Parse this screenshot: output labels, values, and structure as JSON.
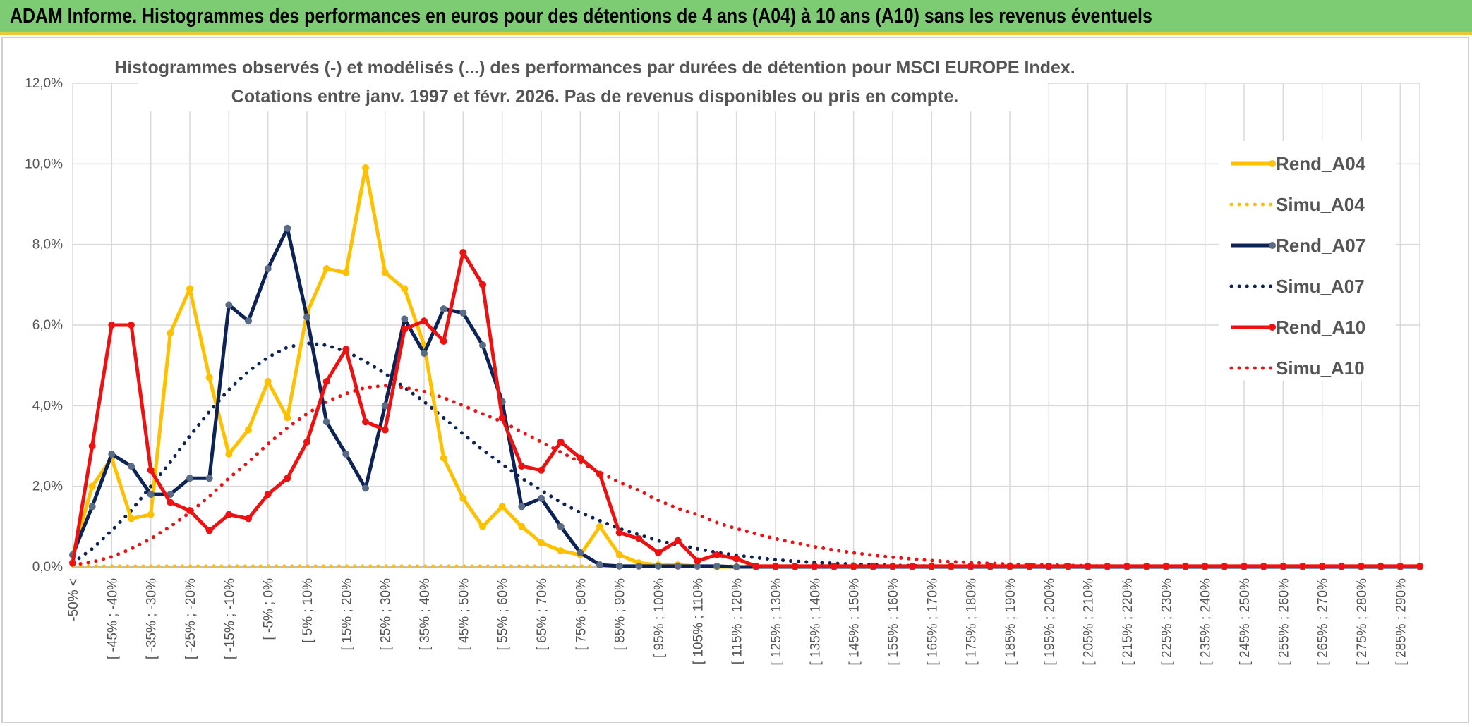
{
  "header": {
    "banner_title": "ADAM Informe. Histogrammes des performances en euros pour des détentions de 4 ans (A04) à 10 ans (A10) sans les revenus éventuels",
    "banner_color": "#7dcb72"
  },
  "chart_data": {
    "type": "line",
    "title_line1": "Histogrammes observés (-) et modélisés (...) des performances par durées de détention pour MSCI EUROPE Index.",
    "title_line2": "Cotations entre janv. 1997 et févr. 2026. Pas de revenus disponibles ou pris en compte.",
    "ylim": [
      0,
      12
    ],
    "yticks": [
      0,
      2,
      4,
      6,
      8,
      10,
      12
    ],
    "ytick_labels": [
      "0,0%",
      "2,0%",
      "4,0%",
      "6,0%",
      "8,0%",
      "10,0%",
      "12,0%"
    ],
    "grid": true,
    "legend_position": "right",
    "x_labels": [
      "-50% <",
      "[ -45% ; -40%",
      "[ -35% ; -30%",
      "[ -25% ; -20%",
      "[ -15% ; -10%",
      "[ -5% ; 0%",
      "[ 5% ; 10%",
      "[ 15% ; 20%",
      "[ 25% ; 30%",
      "[ 35% ; 40%",
      "[ 45% ; 50%",
      "[ 55% ; 60%",
      "[ 65% ; 70%",
      "[ 75% ; 80%",
      "[ 85% ; 90%",
      "[ 95% ; 100%",
      "[ 105% ; 110%",
      "[ 115% ; 120%",
      "[ 125% ; 130%",
      "[ 135% ; 140%",
      "[ 145% ; 150%",
      "[ 155% ; 160%",
      "[ 165% ; 170%",
      "[ 175% ; 180%",
      "[ 185% ; 190%",
      "[ 195% ; 200%",
      "[ 205% ; 210%",
      "[ 215% ; 220%",
      "[ 225% ; 230%",
      "[ 235% ; 240%",
      "[ 245% ; 250%",
      "[ 255% ; 260%",
      "[ 265% ; 270%",
      "[ 275% ; 280%",
      "[ 285% ; 290%"
    ],
    "n_points": 70,
    "series": [
      {
        "name": "Rend_A04",
        "style": "solid",
        "color": "#ffc000",
        "values": [
          0.3,
          2.0,
          2.7,
          1.2,
          1.3,
          5.8,
          6.9,
          4.7,
          2.8,
          3.4,
          4.6,
          3.7,
          6.3,
          7.4,
          7.3,
          9.9,
          7.3,
          6.9,
          5.5,
          2.7,
          1.7,
          1.0,
          1.5,
          1.0,
          0.6,
          0.4,
          0.3,
          1.0,
          0.3,
          0.1,
          0.05,
          0.05,
          0.02,
          0,
          0,
          0,
          0,
          0,
          0,
          0,
          0,
          0,
          0,
          0,
          0,
          0,
          0,
          0,
          0,
          0,
          0,
          0,
          0,
          0,
          0,
          0,
          0,
          0,
          0,
          0,
          0,
          0,
          0,
          0,
          0,
          0,
          0,
          0,
          0,
          0
        ]
      },
      {
        "name": "Simu_A04",
        "style": "dotted",
        "color": "#ffc000",
        "values": [
          0.02,
          0.02,
          0.02,
          0.02,
          0.02,
          0.02,
          0.02,
          0.02,
          0.02,
          0.02,
          0.02,
          0.02,
          0.02,
          0.02,
          0.02,
          0.02,
          0.02,
          0.02,
          0.02,
          0.02,
          0.02,
          0.02,
          0.02,
          0.02,
          0.02,
          0.02,
          0.02,
          0.02,
          0.02,
          0.02,
          0.02,
          0.02,
          0.02,
          0.02,
          0.02,
          0.02,
          0.02,
          0.02,
          0.02,
          0.02,
          0.02,
          0.02,
          0.02,
          0.02,
          0.02,
          0.02,
          0.02,
          0.02,
          0.02,
          0.02,
          0.02,
          0.02,
          0.02,
          0.02,
          0.02,
          0.02,
          0.02,
          0.02,
          0.02,
          0.02,
          0.02,
          0.02,
          0.02,
          0.02,
          0.02,
          0.02,
          0.02,
          0.02,
          0.02,
          0.02
        ]
      },
      {
        "name": "Rend_A07",
        "style": "solid",
        "color": "#0d2356",
        "values": [
          0.3,
          1.5,
          2.8,
          2.5,
          1.8,
          1.8,
          2.2,
          2.2,
          6.5,
          6.1,
          7.4,
          8.4,
          6.2,
          3.6,
          2.8,
          1.95,
          4.0,
          6.15,
          5.3,
          6.4,
          6.3,
          5.5,
          4.1,
          1.5,
          1.7,
          1.0,
          0.35,
          0.05,
          0.02,
          0.02,
          0.02,
          0.02,
          0.02,
          0.02,
          0,
          0,
          0,
          0,
          0,
          0,
          0,
          0,
          0,
          0,
          0,
          0,
          0,
          0,
          0,
          0,
          0,
          0,
          0,
          0,
          0,
          0,
          0,
          0,
          0,
          0,
          0,
          0,
          0,
          0,
          0,
          0,
          0,
          0,
          0,
          0
        ]
      },
      {
        "name": "Simu_A07",
        "style": "dotted",
        "color": "#0d2356",
        "values": [
          0.1,
          0.45,
          0.9,
          1.4,
          2.0,
          2.6,
          3.25,
          3.85,
          4.4,
          4.85,
          5.2,
          5.45,
          5.55,
          5.5,
          5.35,
          5.1,
          4.8,
          4.45,
          4.1,
          3.7,
          3.3,
          2.9,
          2.55,
          2.2,
          1.9,
          1.6,
          1.35,
          1.15,
          0.95,
          0.8,
          0.65,
          0.55,
          0.45,
          0.36,
          0.29,
          0.23,
          0.18,
          0.14,
          0.11,
          0.09,
          0.07,
          0.05,
          0.04,
          0.03,
          0.02,
          0.02,
          0.01,
          0.01,
          0.01,
          0.01,
          0,
          0,
          0,
          0,
          0,
          0,
          0,
          0,
          0,
          0,
          0,
          0,
          0,
          0,
          0,
          0,
          0,
          0,
          0,
          0
        ]
      },
      {
        "name": "Rend_A10",
        "style": "solid",
        "color": "#ee1111",
        "values": [
          0.1,
          3.0,
          6.0,
          6.0,
          2.4,
          1.6,
          1.4,
          0.9,
          1.3,
          1.2,
          1.8,
          2.2,
          3.1,
          4.6,
          5.4,
          3.6,
          3.4,
          5.9,
          6.1,
          5.6,
          7.8,
          7.0,
          3.7,
          2.5,
          2.4,
          3.1,
          2.7,
          2.3,
          0.85,
          0.7,
          0.35,
          0.65,
          0.15,
          0.3,
          0.2,
          0.02,
          0.02,
          0.02,
          0.02,
          0.02,
          0.02,
          0.02,
          0.02,
          0.02,
          0.02,
          0.02,
          0.02,
          0.02,
          0.02,
          0.02,
          0.02,
          0.02,
          0.02,
          0.02,
          0.02,
          0.02,
          0.02,
          0.02,
          0.02,
          0.02,
          0.02,
          0.02,
          0.02,
          0.02,
          0.02,
          0.02,
          0.02,
          0.02,
          0.02,
          0.02
        ]
      },
      {
        "name": "Simu_A10",
        "style": "dotted",
        "color": "#ee1111",
        "values": [
          0.05,
          0.12,
          0.25,
          0.45,
          0.7,
          1.0,
          1.35,
          1.75,
          2.2,
          2.6,
          3.05,
          3.45,
          3.8,
          4.1,
          4.3,
          4.45,
          4.5,
          4.45,
          4.35,
          4.2,
          4.0,
          3.8,
          3.6,
          3.35,
          3.1,
          2.85,
          2.6,
          2.35,
          2.1,
          1.9,
          1.65,
          1.45,
          1.3,
          1.1,
          0.95,
          0.82,
          0.7,
          0.6,
          0.5,
          0.42,
          0.35,
          0.29,
          0.24,
          0.2,
          0.16,
          0.13,
          0.11,
          0.09,
          0.07,
          0.06,
          0.05,
          0.04,
          0.03,
          0.02,
          0.02,
          0.02,
          0.01,
          0.01,
          0.01,
          0.01,
          0.01,
          0.01,
          0.01,
          0.01,
          0.01,
          0.01,
          0.01,
          0.01,
          0.01,
          0.01
        ]
      }
    ]
  }
}
